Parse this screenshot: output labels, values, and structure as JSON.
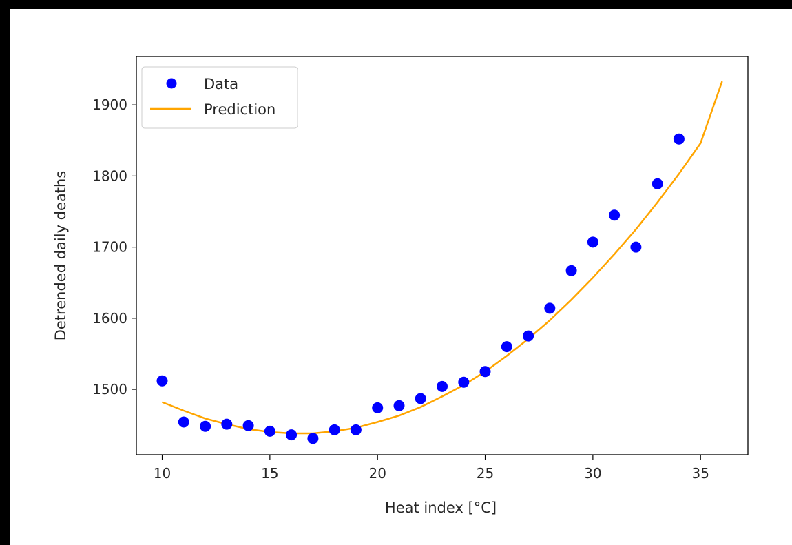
{
  "chart_data": {
    "type": "scatter",
    "xlabel": "Heat index [°C]",
    "ylabel": "Detrended daily deaths",
    "xlim": [
      8.8,
      37.2
    ],
    "ylim": [
      1408,
      1968
    ],
    "grid": false,
    "legend_position": "upper-left",
    "x_ticks": [
      10,
      15,
      20,
      25,
      30,
      35
    ],
    "y_ticks": [
      1500,
      1600,
      1700,
      1800,
      1900
    ],
    "series": [
      {
        "name": "Data",
        "kind": "scatter",
        "color": "#0000ff",
        "x": [
          10,
          11,
          12,
          13,
          14,
          15,
          16,
          17,
          18,
          19,
          20,
          21,
          22,
          23,
          24,
          25,
          26,
          27,
          28,
          29,
          30,
          31,
          32,
          33,
          34
        ],
        "y": [
          1512,
          1454,
          1448,
          1451,
          1449,
          1441,
          1436,
          1431,
          1443,
          1443,
          1474,
          1477,
          1487,
          1504,
          1510,
          1525,
          1560,
          1575,
          1614,
          1667,
          1707,
          1745,
          1700,
          1789,
          1852
        ]
      },
      {
        "name": "Prediction",
        "kind": "line",
        "color": "#ffa500",
        "x": [
          10,
          11,
          12,
          13,
          14,
          15,
          16,
          17,
          18,
          19,
          20,
          21,
          22,
          23,
          24,
          25,
          26,
          27,
          28,
          29,
          30,
          31,
          32,
          33,
          34,
          35,
          36
        ],
        "y": [
          1482,
          1470,
          1459,
          1451,
          1444,
          1440,
          1438,
          1438,
          1441,
          1446,
          1454,
          1463,
          1475,
          1490,
          1506,
          1525,
          1547,
          1571,
          1597,
          1626,
          1657,
          1690,
          1725,
          1763,
          1803,
          1846,
          1933
        ]
      }
    ]
  }
}
